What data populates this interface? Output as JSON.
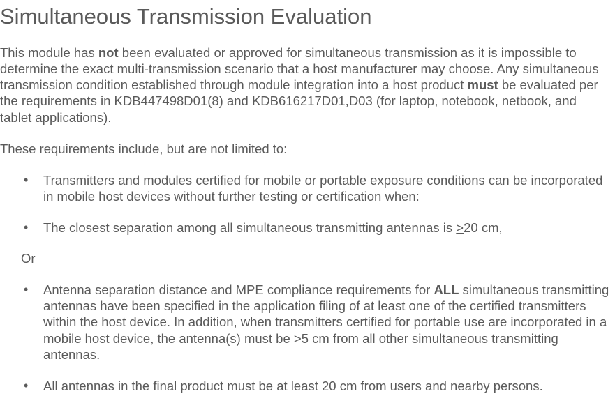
{
  "heading": "Simultaneous Transmission Evaluation",
  "para1_pre": "This module has ",
  "para1_bold1": "not",
  "para1_mid": " been evaluated or approved for simultaneous transmission as it is impossible to determine the exact multi-transmission scenario that a host manufacturer may choose.  Any simultaneous transmission condition established through module integration into a host product ",
  "para1_bold2": "must",
  "para1_post": " be evaluated per the requirements in KDB447498D01(8) and KDB616217D01,D03 (for laptop, notebook, netbook, and tablet applications).",
  "para2": "These requirements include, but are not limited to:",
  "bullet1": "Transmitters and modules certified for mobile or portable exposure conditions can be incorporated in mobile host devices without further testing or certification when:",
  "bullet2_pre": "The closest separation among all simultaneous transmitting antennas is ",
  "bullet2_u": ">",
  "bullet2_post": "20 cm,",
  "or_text": "Or",
  "bullet3_pre": "Antenna separation distance and MPE compliance requirements for ",
  "bullet3_bold": "ALL",
  "bullet3_mid": " simultaneous transmitting antennas have been specified in the application filing of at least one of the certified transmitters within the host device.  In addition, when transmitters certified for portable use are incorporated in a mobile host device, the antenna(s) must be ",
  "bullet3_u": ">",
  "bullet3_post": "5 cm from all other simultaneous transmitting antennas.",
  "bullet4": "All antennas in the final product must be at least 20 cm from users and nearby persons."
}
